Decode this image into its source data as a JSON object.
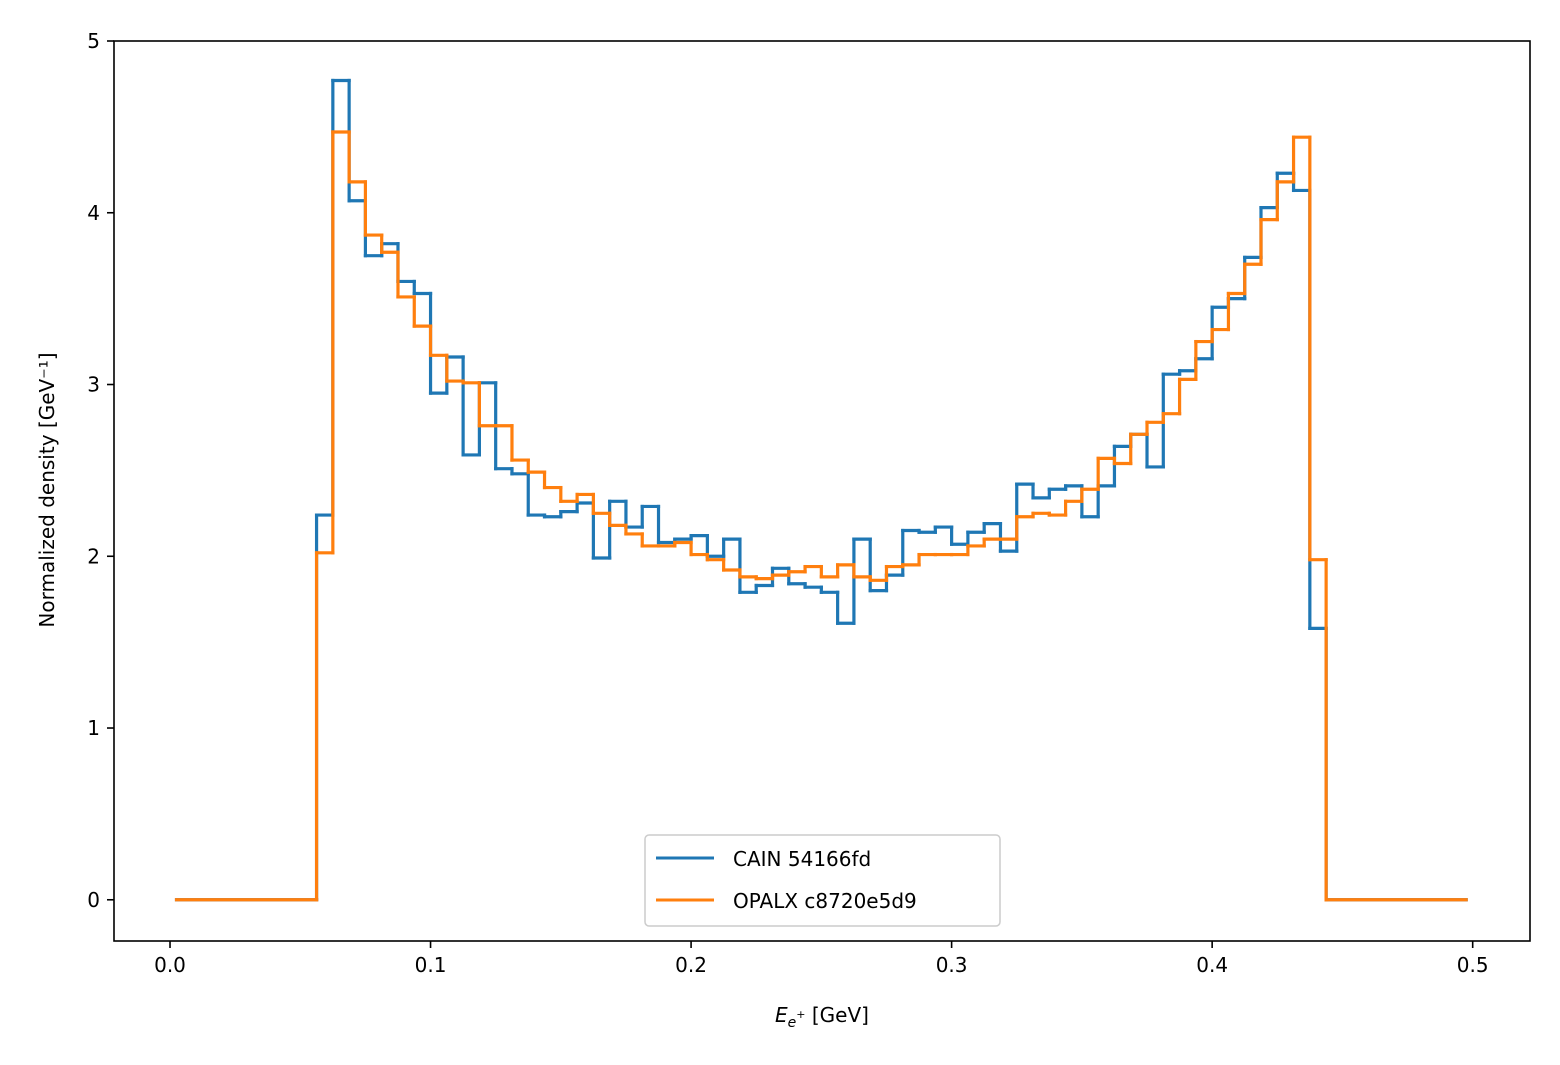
{
  "chart_data": {
    "type": "line",
    "style": "step-histogram",
    "title": "",
    "xlabel": "E_{e⁺} [GeV]",
    "xlabel_main": "E",
    "xlabel_sub": "e",
    "xlabel_sup": "+",
    "xlabel_unit": " [GeV]",
    "ylabel": "Normalized density [GeV⁻¹]",
    "xlim": [
      -0.0215,
      0.522
    ],
    "ylim": [
      -0.24,
      5.0
    ],
    "xticks": [
      0.0,
      0.1,
      0.2,
      0.3,
      0.4,
      0.5
    ],
    "xtick_labels": [
      "0.0",
      "0.1",
      "0.2",
      "0.3",
      "0.4",
      "0.5"
    ],
    "yticks": [
      0,
      1,
      2,
      3,
      4,
      5
    ],
    "ytick_labels": [
      "0",
      "1",
      "2",
      "3",
      "4",
      "5"
    ],
    "grid": false,
    "legend_position": "bottom-center",
    "edges": [
      0.0025,
      0.05625,
      0.0625,
      0.06875,
      0.075,
      0.08125,
      0.0875,
      0.09375,
      0.1,
      0.10625,
      0.1125,
      0.11875,
      0.125,
      0.13125,
      0.1375,
      0.14375,
      0.15,
      0.15625,
      0.1625,
      0.16875,
      0.175,
      0.18125,
      0.1875,
      0.19375,
      0.2,
      0.20625,
      0.2125,
      0.21875,
      0.225,
      0.23125,
      0.2375,
      0.24375,
      0.25,
      0.25625,
      0.2625,
      0.26875,
      0.275,
      0.28125,
      0.2875,
      0.29375,
      0.3,
      0.30625,
      0.3125,
      0.31875,
      0.325,
      0.33125,
      0.3375,
      0.34375,
      0.35,
      0.35625,
      0.3625,
      0.36875,
      0.375,
      0.38125,
      0.3875,
      0.39375,
      0.4,
      0.40625,
      0.4125,
      0.41875,
      0.425,
      0.43125,
      0.4375,
      0.44375,
      0.4975
    ],
    "series": [
      {
        "name": "CAIN 54166fd",
        "color": "#1f77b4",
        "values": [
          0,
          2.24,
          4.77,
          4.07,
          3.75,
          3.82,
          3.6,
          3.53,
          2.95,
          3.16,
          2.59,
          3.01,
          2.51,
          2.48,
          2.24,
          2.23,
          2.26,
          2.31,
          1.99,
          2.32,
          2.17,
          2.29,
          2.08,
          2.1,
          2.12,
          2.0,
          2.1,
          1.79,
          1.83,
          1.93,
          1.84,
          1.82,
          1.79,
          1.61,
          2.1,
          1.8,
          1.89,
          2.15,
          2.14,
          2.17,
          2.07,
          2.14,
          2.19,
          2.03,
          2.42,
          2.34,
          2.39,
          2.41,
          2.23,
          2.41,
          2.64,
          2.71,
          2.52,
          3.06,
          3.08,
          3.15,
          3.45,
          3.5,
          3.74,
          4.03,
          4.23,
          4.13,
          1.58,
          0
        ]
      },
      {
        "name": "OPALX c8720e5d9",
        "color": "#ff7f0e",
        "values": [
          0,
          2.02,
          4.47,
          4.18,
          3.87,
          3.77,
          3.51,
          3.34,
          3.17,
          3.02,
          3.01,
          2.76,
          2.76,
          2.56,
          2.49,
          2.4,
          2.32,
          2.36,
          2.25,
          2.18,
          2.13,
          2.06,
          2.06,
          2.08,
          2.01,
          1.98,
          1.92,
          1.88,
          1.87,
          1.89,
          1.91,
          1.94,
          1.88,
          1.95,
          1.88,
          1.86,
          1.94,
          1.95,
          2.01,
          2.01,
          2.01,
          2.06,
          2.1,
          2.1,
          2.23,
          2.25,
          2.24,
          2.32,
          2.39,
          2.57,
          2.54,
          2.71,
          2.78,
          2.83,
          3.03,
          3.25,
          3.32,
          3.53,
          3.7,
          3.96,
          4.18,
          4.44,
          1.98,
          0
        ]
      }
    ]
  }
}
